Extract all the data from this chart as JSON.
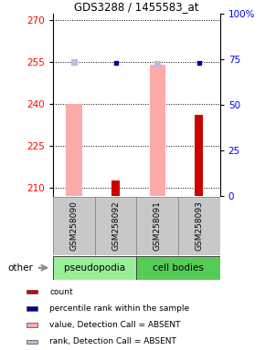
{
  "title": "GDS3288 / 1455583_at",
  "samples": [
    "GSM258090",
    "GSM258092",
    "GSM258091",
    "GSM258093"
  ],
  "ylim_left": [
    207,
    272
  ],
  "ylim_right": [
    0,
    100
  ],
  "yticks_left": [
    210,
    225,
    240,
    255,
    270
  ],
  "yticks_right": [
    0,
    25,
    50,
    75,
    100
  ],
  "ytick_right_labels": [
    "0",
    "25",
    "50",
    "75",
    "100%"
  ],
  "pink_bars": [
    240.0,
    null,
    254.0,
    null
  ],
  "red_bars": [
    null,
    212.5,
    null,
    236.0
  ],
  "blue_dots_left": [
    null,
    254.5,
    null,
    254.5
  ],
  "lavender_dots_left": [
    254.8,
    null,
    254.3,
    null
  ],
  "group_label_pseudopodia": "pseudopodia",
  "group_label_cell_bodies": "cell bodies",
  "other_label": "other",
  "group_colors": [
    "#99ee99",
    "#55cc55"
  ],
  "sample_box_color": "#c8c8c8",
  "legend_items": [
    {
      "color": "#cc0000",
      "label": "count"
    },
    {
      "color": "#000099",
      "label": "percentile rank within the sample"
    },
    {
      "color": "#ffaaaa",
      "label": "value, Detection Call = ABSENT"
    },
    {
      "color": "#bbbbdd",
      "label": "rank, Detection Call = ABSENT"
    }
  ]
}
